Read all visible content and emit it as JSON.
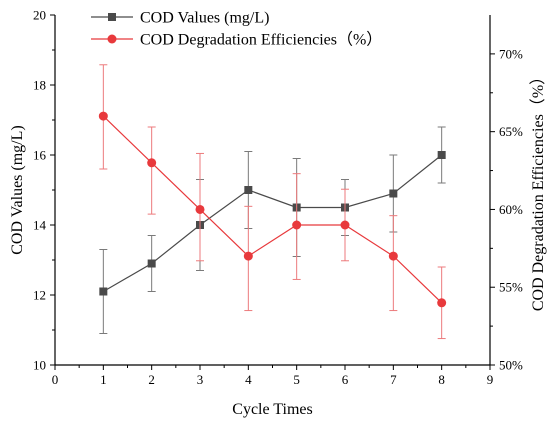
{
  "chart_data": {
    "type": "line",
    "x": [
      1,
      2,
      3,
      4,
      5,
      6,
      7,
      8
    ],
    "xlabel": "Cycle Times",
    "xlim": [
      0,
      9
    ],
    "xticks": [
      0,
      1,
      2,
      3,
      4,
      5,
      6,
      7,
      8,
      9
    ],
    "left_axis": {
      "label": "COD Values (mg/L)",
      "lim": [
        10,
        20
      ],
      "ticks": [
        10,
        12,
        14,
        16,
        18,
        20
      ]
    },
    "right_axis": {
      "label": "COD Degradation Efficiencies（%）",
      "lim": [
        50,
        72.5
      ],
      "ticks": [
        50,
        55,
        60,
        65,
        70
      ],
      "tick_suffix": "%"
    },
    "grid": false,
    "legend": "top-left",
    "series": [
      {
        "name": "COD Values (mg/L)",
        "axis": "left",
        "marker": "square",
        "color": "#4a4a4a",
        "values": [
          12.1,
          12.9,
          14.0,
          15.0,
          14.5,
          14.5,
          14.9,
          16.0
        ],
        "err_low": [
          10.9,
          12.1,
          12.7,
          13.9,
          13.1,
          13.7,
          13.8,
          15.2
        ],
        "err_high": [
          13.3,
          13.7,
          15.3,
          16.1,
          15.9,
          15.3,
          16.0,
          16.8
        ]
      },
      {
        "name": "COD Degradation Efficiencies（%）",
        "axis": "right",
        "marker": "circle",
        "color": "#e8393c",
        "values": [
          66,
          63,
          60,
          57,
          59,
          59,
          57,
          54
        ],
        "err_low": [
          62.6,
          59.7,
          56.7,
          53.5,
          55.5,
          56.7,
          53.5,
          51.7
        ],
        "err_high": [
          69.3,
          65.3,
          63.6,
          60.2,
          62.3,
          61.3,
          59.6,
          56.3
        ]
      }
    ]
  }
}
